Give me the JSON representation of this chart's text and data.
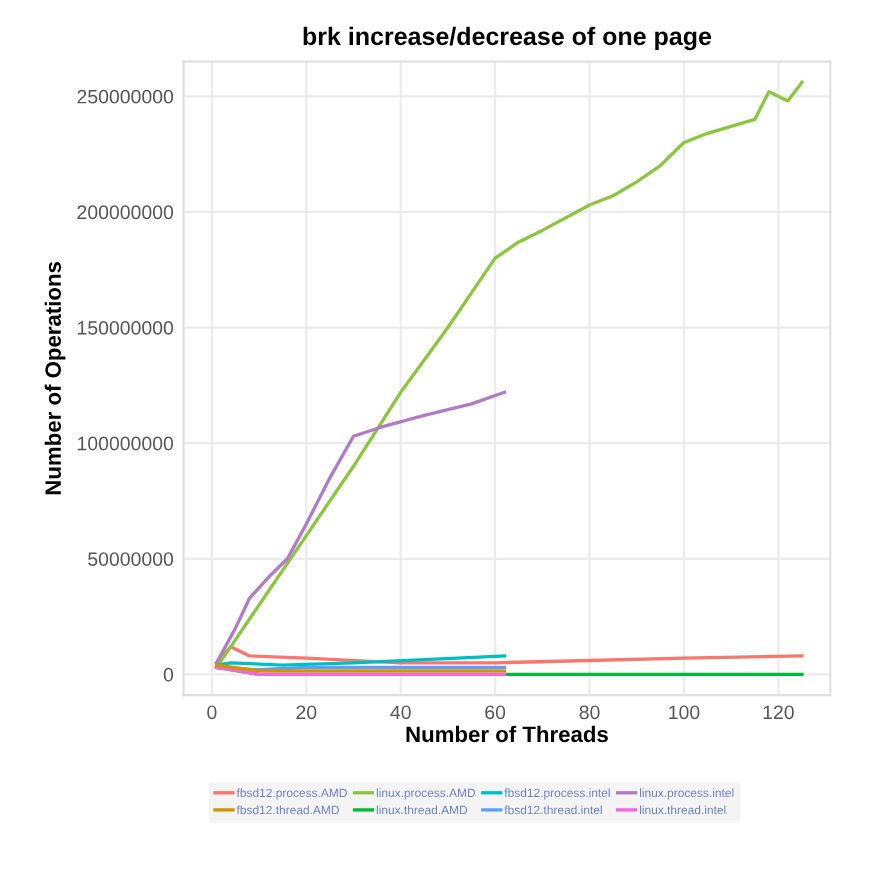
{
  "chart_data": {
    "type": "line",
    "title": "brk increase/decrease of one page",
    "xlabel": "Number of Threads",
    "ylabel": "Number of Operations",
    "xlim": [
      -6,
      131
    ],
    "xticks": [
      0,
      20,
      40,
      60,
      80,
      100,
      120
    ],
    "ylim": [
      -9000000,
      265000000
    ],
    "yticks": [
      0,
      50000000,
      100000000,
      150000000,
      200000000,
      250000000
    ],
    "grid": true,
    "legend": "bottom",
    "marker": "none",
    "line_style": "solid",
    "series": [
      {
        "name": "fbsd12.process.AMD",
        "color": "#f8766d",
        "x": [
          1,
          4,
          8,
          20,
          40,
          60,
          80,
          100,
          125
        ],
        "values": [
          5000000,
          12000000,
          8000000,
          7000000,
          5000000,
          5000000,
          6000000,
          7000000,
          8000000
        ]
      },
      {
        "name": "linux.process.AMD",
        "color": "#8cc63f",
        "x": [
          1,
          10,
          20,
          30,
          40,
          50,
          60,
          65,
          70,
          80,
          85,
          90,
          95,
          100,
          105,
          110,
          115,
          118,
          122,
          125
        ],
        "values": [
          3000000,
          30000000,
          60000000,
          90000000,
          122000000,
          150000000,
          180000000,
          187000000,
          192000000,
          203000000,
          207000000,
          213000000,
          220000000,
          230000000,
          234000000,
          237000000,
          240000000,
          252000000,
          248000000,
          256000000
        ]
      },
      {
        "name": "fbsd12.process.intel",
        "color": "#00bfc4",
        "x": [
          1,
          4,
          15,
          30,
          62
        ],
        "values": [
          4000000,
          5000000,
          4000000,
          5000000,
          8000000
        ]
      },
      {
        "name": "linux.process.intel",
        "color": "#b07cc6",
        "x": [
          1,
          5,
          8,
          12,
          16,
          20,
          25,
          30,
          36,
          45,
          55,
          62
        ],
        "values": [
          5000000,
          20000000,
          33000000,
          42000000,
          50000000,
          65000000,
          85000000,
          103000000,
          107000000,
          112000000,
          117000000,
          122000000
        ]
      },
      {
        "name": "fbsd12.thread.AMD",
        "color": "#cd9600",
        "x": [
          1,
          10,
          62
        ],
        "values": [
          4000000,
          1500000,
          1500000
        ]
      },
      {
        "name": "linux.thread.AMD",
        "color": "#00ba38",
        "x": [
          1,
          10,
          60,
          125
        ],
        "values": [
          3000000,
          0,
          0,
          0
        ]
      },
      {
        "name": "fbsd12.thread.intel",
        "color": "#619cff",
        "x": [
          1,
          10,
          20,
          40,
          62
        ],
        "values": [
          3000000,
          2000000,
          3000000,
          3000000,
          3000000
        ]
      },
      {
        "name": "linux.thread.intel",
        "color": "#f564e3",
        "x": [
          1,
          10,
          62
        ],
        "values": [
          3000000,
          0,
          0
        ]
      }
    ]
  }
}
